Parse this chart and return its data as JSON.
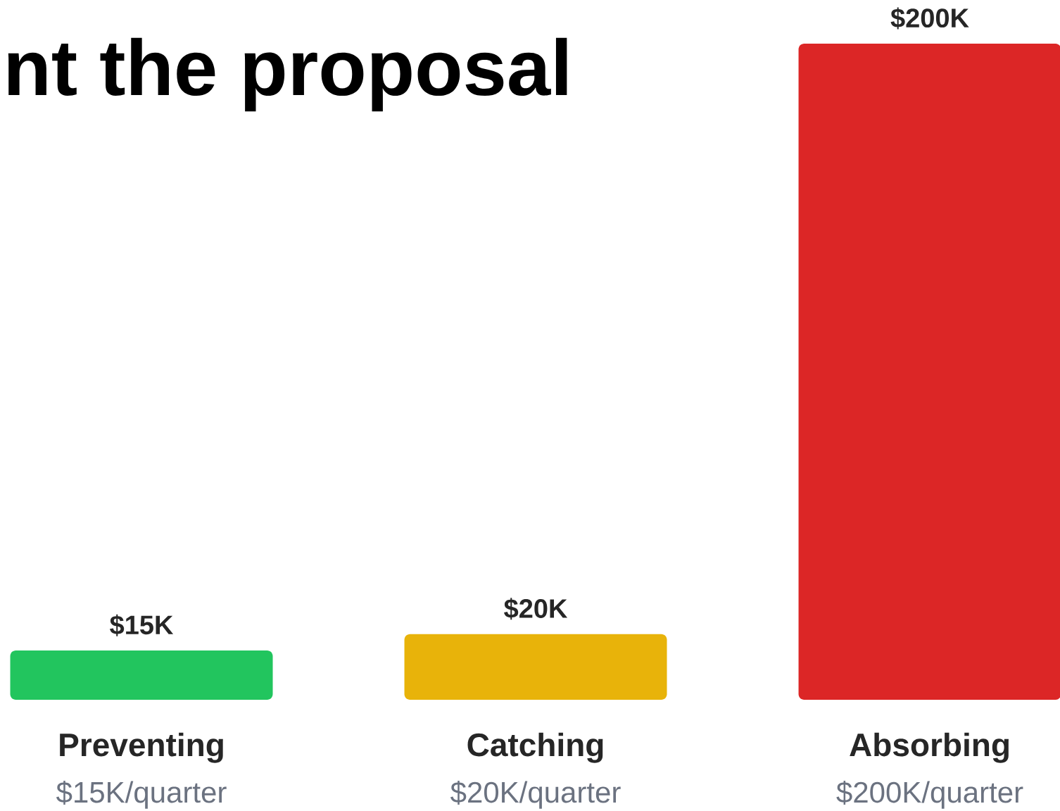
{
  "chart_data": {
    "type": "bar",
    "title": "nt the proposal",
    "categories": [
      "Preventing",
      "Catching",
      "Absorbing"
    ],
    "values": [
      15,
      20,
      200
    ],
    "colors": [
      "#22c55e",
      "#e8b30a",
      "#dc2626"
    ],
    "value_labels": [
      "$15K",
      "$20K",
      "$200K"
    ],
    "annotations": [
      "$15K/quarter",
      "$20K/quarter",
      "$200K/quarter"
    ]
  }
}
